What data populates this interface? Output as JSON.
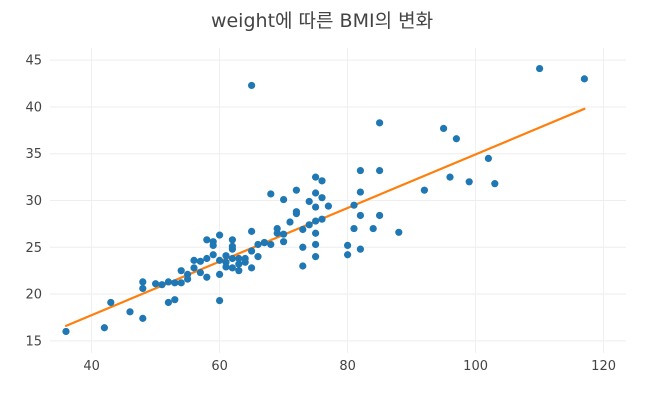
{
  "chart_data": {
    "type": "scatter",
    "title": "weight에 따른 BMI의 변화",
    "xlabel": "",
    "ylabel": "",
    "xlim": [
      33.5,
      123.5
    ],
    "ylim": [
      13.7,
      46.3
    ],
    "xticks": [
      40,
      60,
      80,
      100,
      120
    ],
    "yticks": [
      15,
      20,
      25,
      30,
      35,
      40,
      45
    ],
    "grid": true,
    "colors": {
      "points": "#1f77b4",
      "fit_line": "#ff7f0e",
      "grid": "#eeeeee",
      "text": "#444444"
    },
    "series": [
      {
        "kind": "points",
        "x": [
          36,
          42,
          43,
          46,
          48,
          48,
          48,
          50,
          51,
          52,
          52,
          53,
          53,
          54,
          54,
          55,
          55,
          56,
          56,
          57,
          57,
          58,
          58,
          58,
          59,
          59,
          59,
          60,
          60,
          60,
          60,
          61,
          61,
          61,
          62,
          62,
          62,
          62,
          62,
          63,
          63,
          63,
          64,
          64,
          65,
          65,
          65,
          65,
          66,
          66,
          67,
          67,
          68,
          68,
          69,
          69,
          70,
          70,
          70,
          71,
          72,
          72,
          72,
          73,
          73,
          73,
          74,
          74,
          75,
          75,
          75,
          75,
          75,
          75,
          75,
          76,
          76,
          76,
          77,
          80,
          80,
          81,
          81,
          82,
          82,
          82,
          82,
          84,
          85,
          85,
          85,
          88,
          92,
          95,
          96,
          97,
          99,
          102,
          103,
          110,
          117
        ],
        "y": [
          16.0,
          16.4,
          19.1,
          18.1,
          17.4,
          20.6,
          21.3,
          21.1,
          21.0,
          19.1,
          21.3,
          19.4,
          21.2,
          21.2,
          22.5,
          22.1,
          21.6,
          23.6,
          22.8,
          23.5,
          22.3,
          25.8,
          23.8,
          21.8,
          24.2,
          25.6,
          25.2,
          26.3,
          23.6,
          22.1,
          19.3,
          23.4,
          24.1,
          22.9,
          24.8,
          25.1,
          25.8,
          23.8,
          22.8,
          23.2,
          23.8,
          22.5,
          23.4,
          23.8,
          42.3,
          26.7,
          24.6,
          22.8,
          24.0,
          25.3,
          25.5,
          25.5,
          30.7,
          25.3,
          26.5,
          27.0,
          25.6,
          26.4,
          30.1,
          27.7,
          28.6,
          31.1,
          28.8,
          25.0,
          26.9,
          23.0,
          27.4,
          29.9,
          30.8,
          32.5,
          29.3,
          27.8,
          26.5,
          25.3,
          24.0,
          32.1,
          30.3,
          28.0,
          29.4,
          25.2,
          24.2,
          29.5,
          27.0,
          33.2,
          30.9,
          28.4,
          24.8,
          27.0,
          38.3,
          33.2,
          28.4,
          26.6,
          31.1,
          37.7,
          32.5,
          36.6,
          32.0,
          34.5,
          31.8,
          44.1,
          43.0
        ]
      },
      {
        "kind": "fit_line",
        "x": [
          36,
          117
        ],
        "y": [
          16.6,
          39.8
        ]
      }
    ]
  }
}
